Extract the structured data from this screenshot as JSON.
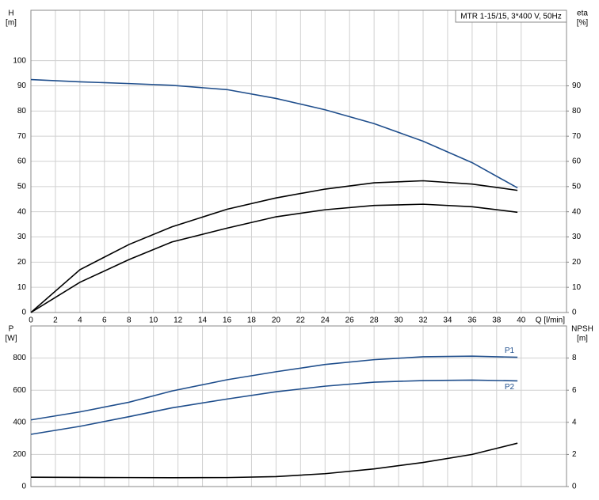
{
  "chart_data": [
    {
      "type": "line",
      "title": "MTR 1-15/15, 3*400 V, 50Hz",
      "y_label": "H",
      "y_unit": "[m]",
      "y2_label": "eta",
      "y2_unit": "[%]",
      "x_label": "Q [l/min]",
      "x": [
        0,
        4,
        8,
        11.5,
        16,
        20,
        24,
        28,
        32,
        36,
        39.7
      ],
      "xlim": [
        0,
        43.7
      ],
      "xticks": [
        0,
        2,
        4,
        6,
        8,
        10,
        12,
        14,
        16,
        18,
        20,
        22,
        24,
        26,
        28,
        30,
        32,
        34,
        36,
        38,
        40
      ],
      "ylim": [
        0,
        120
      ],
      "yticks": [
        0,
        10,
        20,
        30,
        40,
        50,
        60,
        70,
        80,
        90,
        100
      ],
      "y2lim": [
        0,
        120
      ],
      "y2ticks": [
        0,
        10,
        20,
        30,
        40,
        50,
        60,
        70,
        80,
        90
      ],
      "grid": true,
      "show_xtick_labels": true,
      "series": [
        {
          "color": "#1f4e8c",
          "values": [
            92.5,
            91.6,
            90.9,
            90.2,
            88.5,
            85,
            80.5,
            75,
            68,
            59.5,
            49.5
          ]
        },
        {
          "color": "#000000",
          "axis": "y2",
          "values": [
            0,
            17,
            27,
            34,
            41,
            45.5,
            49,
            51.5,
            52.3,
            51,
            48.5
          ]
        },
        {
          "color": "#000000",
          "axis": "y2",
          "values": [
            0,
            12,
            21,
            28,
            33.5,
            38,
            40.8,
            42.5,
            43,
            42,
            39.8
          ]
        }
      ]
    },
    {
      "type": "line",
      "y_label": "P",
      "y_unit": "[W]",
      "y2_label": "NPSH",
      "y2_unit": "[m]",
      "x": [
        0,
        4,
        8,
        11.5,
        16,
        20,
        24,
        28,
        32,
        36,
        39.7
      ],
      "xlim": [
        0,
        43.7
      ],
      "xticks": [
        0,
        2,
        4,
        6,
        8,
        10,
        12,
        14,
        16,
        18,
        20,
        22,
        24,
        26,
        28,
        30,
        32,
        34,
        36,
        38,
        40
      ],
      "ylim": [
        0,
        1000
      ],
      "yticks": [
        0,
        200,
        400,
        600,
        800
      ],
      "y2lim": [
        0,
        10
      ],
      "y2ticks": [
        0,
        2,
        4,
        6,
        8
      ],
      "grid": true,
      "show_xtick_labels": false,
      "series": [
        {
          "name": "P1",
          "color": "#1f4e8c",
          "values": [
            415,
            465,
            525,
            595,
            665,
            715,
            760,
            790,
            808,
            812,
            805
          ]
        },
        {
          "name": "P2",
          "color": "#1f4e8c",
          "values": [
            325,
            375,
            435,
            490,
            545,
            590,
            625,
            650,
            660,
            663,
            658
          ]
        },
        {
          "color": "#000000",
          "axis": "y2",
          "values": [
            0.58,
            0.57,
            0.56,
            0.55,
            0.56,
            0.62,
            0.8,
            1.1,
            1.5,
            2.0,
            2.7
          ]
        }
      ]
    }
  ]
}
